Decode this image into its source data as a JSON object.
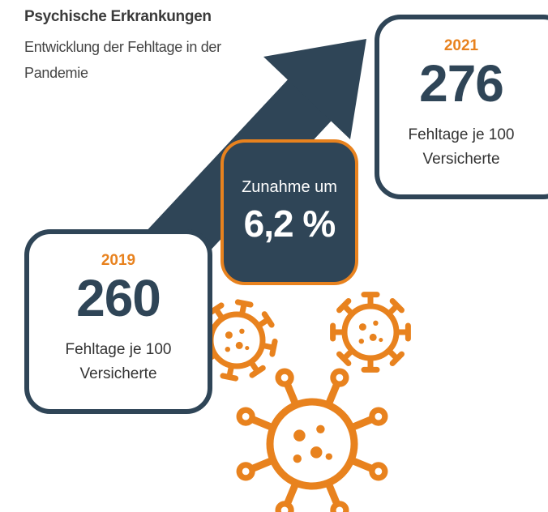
{
  "header": {
    "title": "Psychische Erkrankungen",
    "subtitle": "Entwicklung der Fehltage in der Pandemie"
  },
  "boxes": [
    {
      "year": "2019",
      "value": "260",
      "label": "Fehltage je 100 Versicherte"
    },
    {
      "year": "2021",
      "value": "276",
      "label": "Fehltage je 100 Versicherte"
    }
  ],
  "change": {
    "label": "Zunahme um",
    "value": "6,2 %"
  }
}
